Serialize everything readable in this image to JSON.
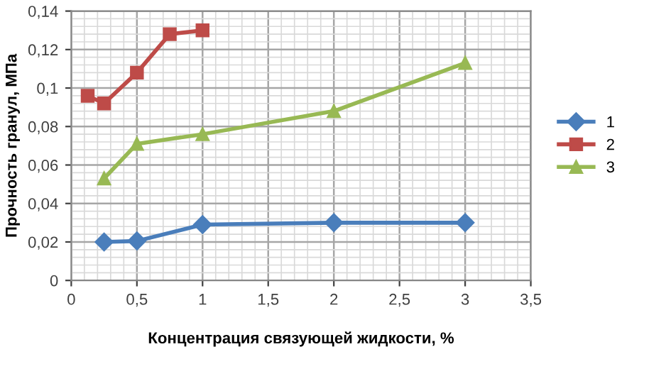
{
  "chart_data": {
    "type": "line",
    "xlabel": "Концентрация связующей жидкости, %",
    "ylabel": "Прочность гранул, МПа",
    "xlim": [
      0,
      3.5
    ],
    "xticks": [
      0,
      {
        "value": 0.5,
        "label": "0,5"
      },
      1,
      {
        "value": 1.5,
        "label": "1,5"
      },
      2,
      {
        "value": 2.5,
        "label": "2,5"
      },
      3,
      {
        "value": 3.5,
        "label": "3,5"
      }
    ],
    "ylim": [
      0,
      0.14
    ],
    "yticks": [
      0,
      {
        "value": 0.02,
        "label": "0,02"
      },
      {
        "value": 0.04,
        "label": "0,04"
      },
      {
        "value": 0.06,
        "label": "0,06"
      },
      {
        "value": 0.08,
        "label": "0,08"
      },
      {
        "value": 0.1,
        "label": "0,1"
      },
      {
        "value": 0.12,
        "label": "0,12"
      },
      {
        "value": 0.14,
        "label": "0,14"
      }
    ],
    "grid": true,
    "legend": "right",
    "line_style": "solid",
    "series": [
      {
        "name": "1",
        "color": "#4a7ebb",
        "marker": "diamond",
        "x": [
          0.25,
          0.5,
          1,
          2,
          3
        ],
        "values": [
          0.02,
          0.0205,
          0.029,
          0.03,
          0.03
        ]
      },
      {
        "name": "2",
        "color": "#be4b48",
        "marker": "square",
        "x": [
          0.125,
          0.25,
          0.5,
          0.75,
          1
        ],
        "values": [
          0.096,
          0.092,
          0.108,
          0.128,
          0.13
        ]
      },
      {
        "name": "3",
        "color": "#98b954",
        "marker": "triangle",
        "x": [
          0.25,
          0.5,
          1,
          2,
          3
        ],
        "values": [
          0.053,
          0.071,
          0.076,
          0.088,
          0.113
        ]
      }
    ]
  }
}
